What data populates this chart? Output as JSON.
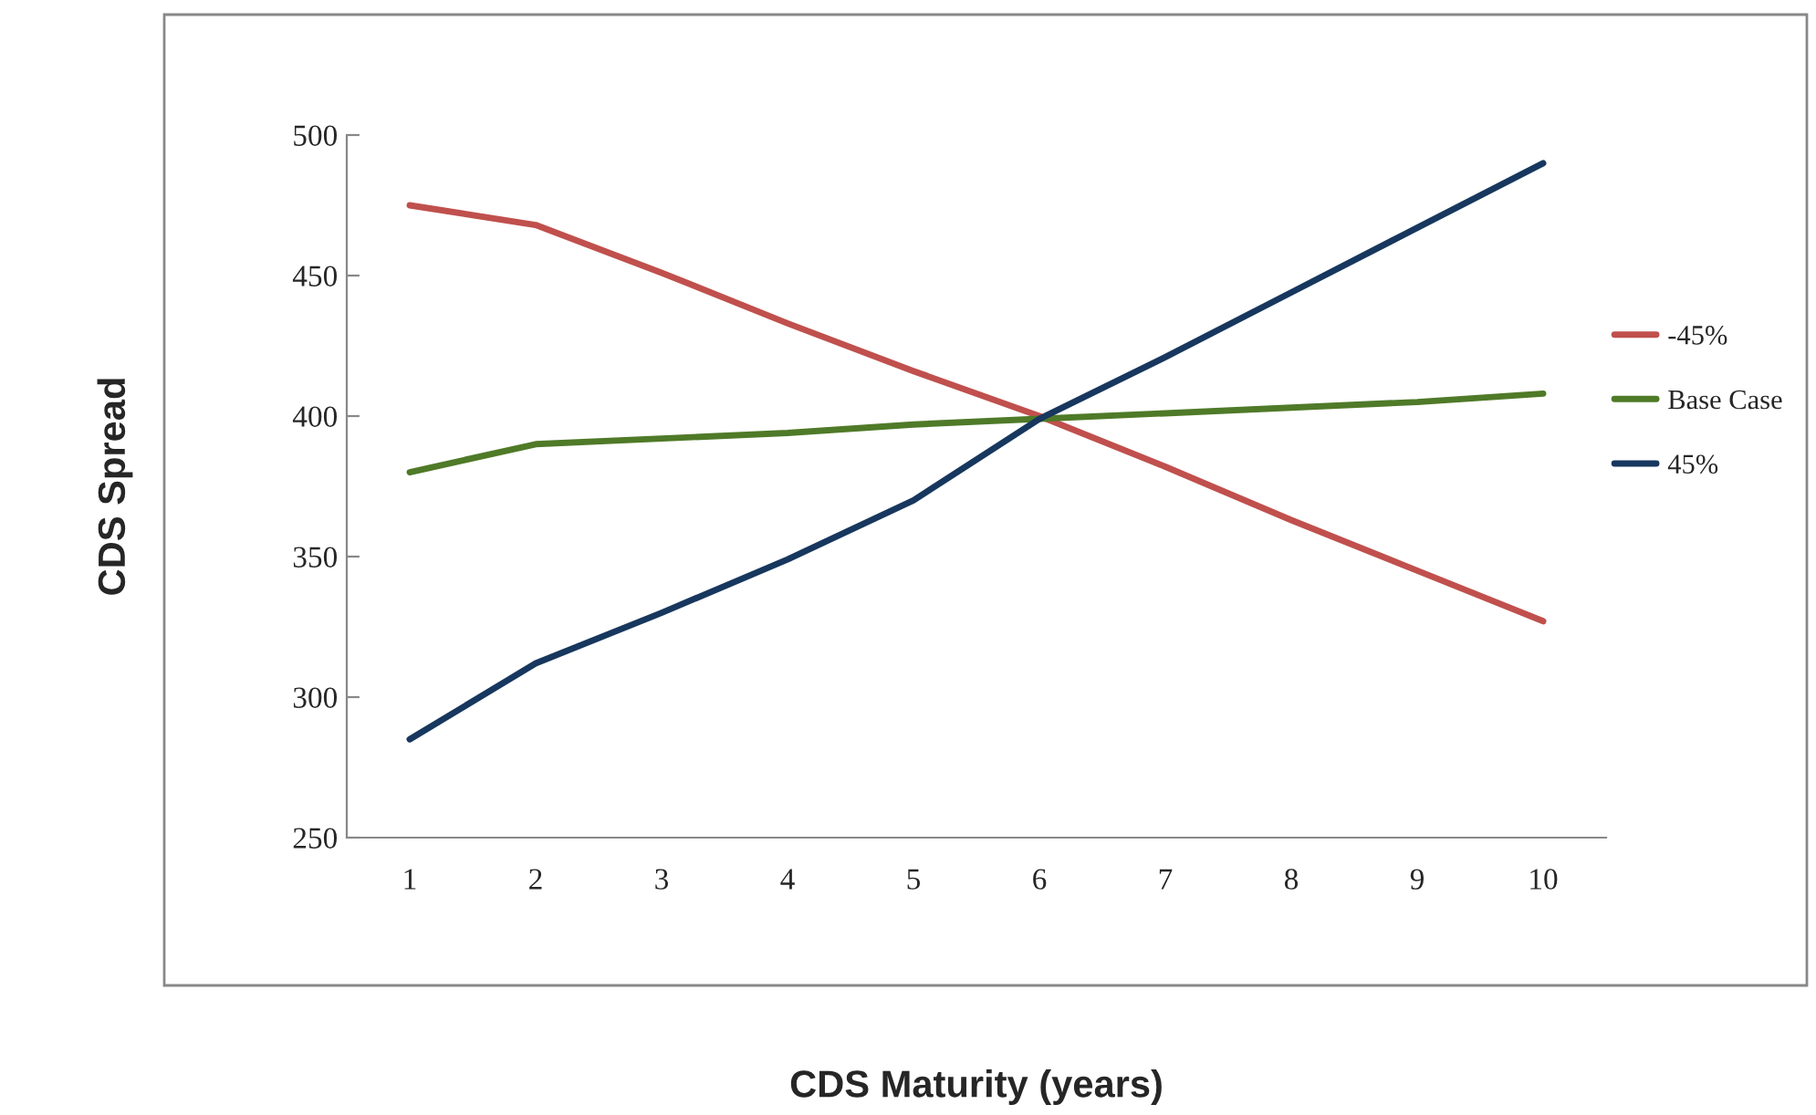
{
  "chart_data": {
    "type": "line",
    "xlabel": "CDS Maturity (years)",
    "ylabel": "CDS Spread",
    "categories": [
      "1",
      "2",
      "3",
      "4",
      "5",
      "6",
      "7",
      "8",
      "9",
      "10"
    ],
    "series": [
      {
        "name": "-45%",
        "color": "#c0504d",
        "values": [
          475,
          468,
          451,
          433,
          416,
          400,
          382,
          363,
          345,
          327
        ]
      },
      {
        "name": "Base Case",
        "color": "#4f7a28",
        "values": [
          380,
          390,
          392,
          394,
          397,
          399,
          401,
          403,
          405,
          408
        ]
      },
      {
        "name": "45%",
        "color": "#17375e",
        "values": [
          285,
          312,
          330,
          349,
          370,
          399,
          421,
          444,
          467,
          490
        ]
      }
    ],
    "ylim": [
      250,
      500
    ],
    "yticks": [
      250,
      300,
      350,
      400,
      450,
      500
    ],
    "grid": false,
    "legend": "right",
    "marker": "none",
    "line_style": "solid"
  }
}
